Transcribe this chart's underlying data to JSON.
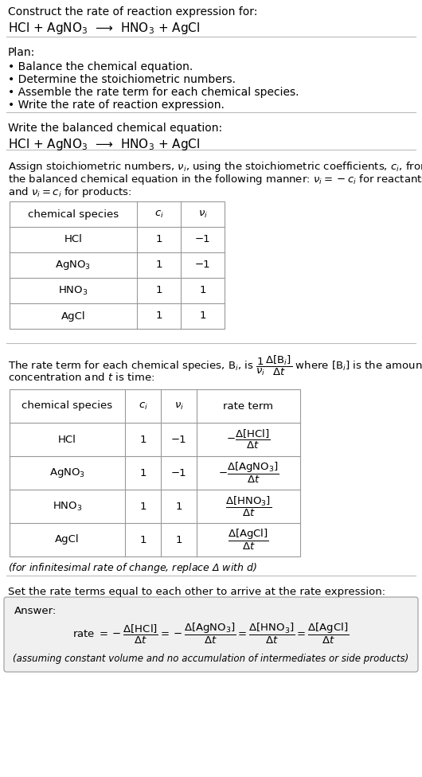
{
  "bg_color": "#ffffff",
  "text_color": "#000000",
  "title_line1": "Construct the rate of reaction expression for:",
  "title_line2": "HCl + AgNO$_3$  ⟶  HNO$_3$ + AgCl",
  "plan_header": "Plan:",
  "plan_items": [
    "• Balance the chemical equation.",
    "• Determine the stoichiometric numbers.",
    "• Assemble the rate term for each chemical species.",
    "• Write the rate of reaction expression."
  ],
  "section2_header": "Write the balanced chemical equation:",
  "section2_eq": "HCl + AgNO$_3$  ⟶  HNO$_3$ + AgCl",
  "section3_header_a": "Assign stoichiometric numbers, $\\nu_i$, using the stoichiometric coefficients, $c_i$, from",
  "section3_header_b": "the balanced chemical equation in the following manner: $\\nu_i = -c_i$ for reactants",
  "section3_header_c": "and $\\nu_i = c_i$ for products:",
  "table1_headers": [
    "chemical species",
    "$c_i$",
    "$\\nu_i$"
  ],
  "table1_rows": [
    [
      "HCl",
      "1",
      "−1"
    ],
    [
      "AgNO$_3$",
      "1",
      "−1"
    ],
    [
      "HNO$_3$",
      "1",
      "1"
    ],
    [
      "AgCl",
      "1",
      "1"
    ]
  ],
  "section4_line1": "The rate term for each chemical species, B$_i$, is $\\dfrac{1}{\\nu_i}\\dfrac{\\Delta[\\mathrm{B}_i]}{\\Delta t}$ where [B$_i$] is the amount",
  "section4_line2": "concentration and $t$ is time:",
  "table2_headers": [
    "chemical species",
    "$c_i$",
    "$\\nu_i$",
    "rate term"
  ],
  "table2_rows": [
    [
      "HCl",
      "1",
      "−1",
      "$-\\dfrac{\\Delta[\\mathrm{HCl}]}{\\Delta t}$"
    ],
    [
      "AgNO$_3$",
      "1",
      "−1",
      "$-\\dfrac{\\Delta[\\mathrm{AgNO_3}]}{\\Delta t}$"
    ],
    [
      "HNO$_3$",
      "1",
      "1",
      "$\\dfrac{\\Delta[\\mathrm{HNO_3}]}{\\Delta t}$"
    ],
    [
      "AgCl",
      "1",
      "1",
      "$\\dfrac{\\Delta[\\mathrm{AgCl}]}{\\Delta t}$"
    ]
  ],
  "infinitesimal_note": "(for infinitesimal rate of change, replace Δ with $d$)",
  "section5_header": "Set the rate terms equal to each other to arrive at the rate expression:",
  "answer_label": "Answer:",
  "answer_note": "(assuming constant volume and no accumulation of intermediates or side products)",
  "divider_color": "#bbbbbb",
  "table_border_color": "#999999",
  "answer_bg": "#f0f0f0"
}
